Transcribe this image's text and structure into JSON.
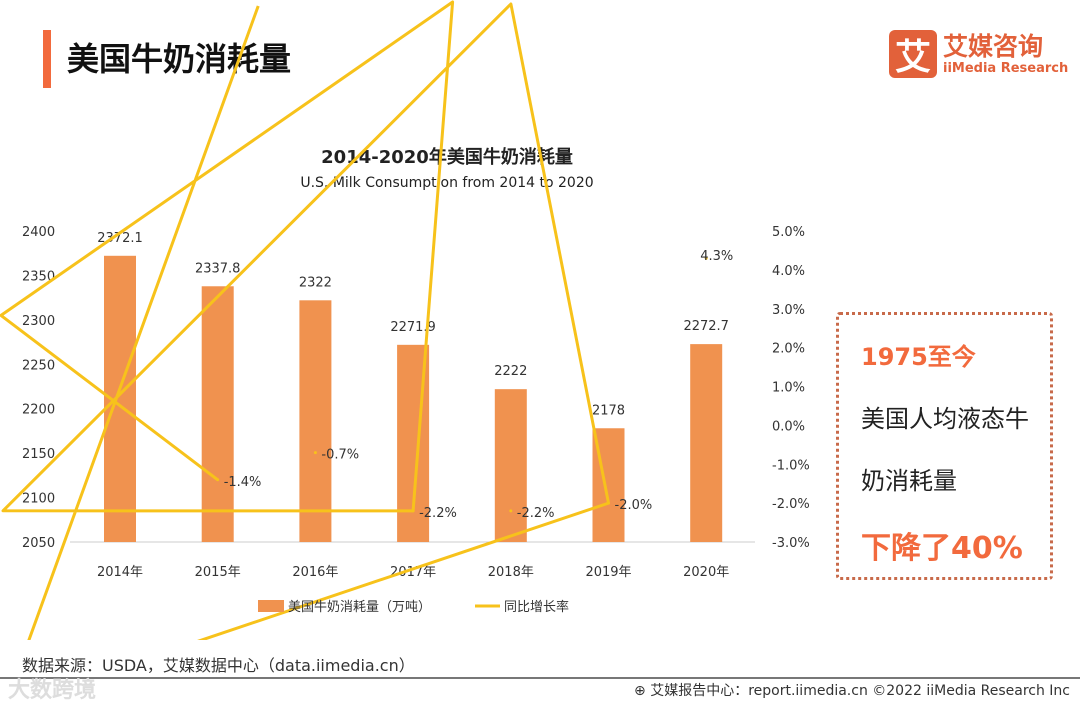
{
  "header": {
    "title": "美国牛奶消耗量",
    "logo_mark": "艾",
    "logo_cn": "艾媒咨询",
    "logo_en": "iiMedia Research"
  },
  "chart_data": {
    "type": "bar+line",
    "title": "2014-2020年美国牛奶消耗量",
    "subtitle": "U.S. Milk Consumption from 2014 to 2020",
    "categories": [
      "2014年",
      "2015年",
      "2016年",
      "2017年",
      "2018年",
      "2019年",
      "2020年"
    ],
    "series": [
      {
        "name": "美国牛奶消耗量（万吨）",
        "type": "bar",
        "axis": "left",
        "color": "#f0924f",
        "values": [
          2372.1,
          2337.8,
          2322,
          2271.9,
          2222,
          2178,
          2272.7
        ],
        "labels": [
          "2372.1",
          "2337.8",
          "2322",
          "2271.9",
          "2222",
          "2178",
          "2272.7"
        ]
      },
      {
        "name": "同比增长率",
        "type": "line",
        "axis": "right",
        "color": "#f7c21b",
        "values": [
          null,
          -1.4,
          -0.7,
          -2.2,
          -2.2,
          -2.0,
          4.3
        ],
        "labels": [
          "",
          "-1.4%",
          "-0.7%",
          "-2.2%",
          "-2.2%",
          "-2.0%",
          "4.3%"
        ]
      }
    ],
    "left_axis": {
      "ylim": [
        2050,
        2400
      ],
      "ticks": [
        "2400",
        "2350",
        "2300",
        "2250",
        "2200",
        "2150",
        "2100",
        "2050"
      ]
    },
    "right_axis": {
      "ylim": [
        -3,
        5
      ],
      "ticks": [
        "5.0%",
        "4.0%",
        "3.0%",
        "2.0%",
        "1.0%",
        "0.0%",
        "-1.0%",
        "-2.0%",
        "-3.0%"
      ]
    },
    "legend": "bottom"
  },
  "callout": {
    "line1": "1975至今",
    "line2": "美国人均液态牛",
    "line3": "奶消耗量",
    "line4": "下降了40%"
  },
  "source": "数据来源：USDA，艾媒数据中心（data.iimedia.cn）",
  "watermark": "大数跨境",
  "footer": "⊕ 艾媒报告中心：report.iimedia.cn   ©2022  iiMedia Research  Inc"
}
